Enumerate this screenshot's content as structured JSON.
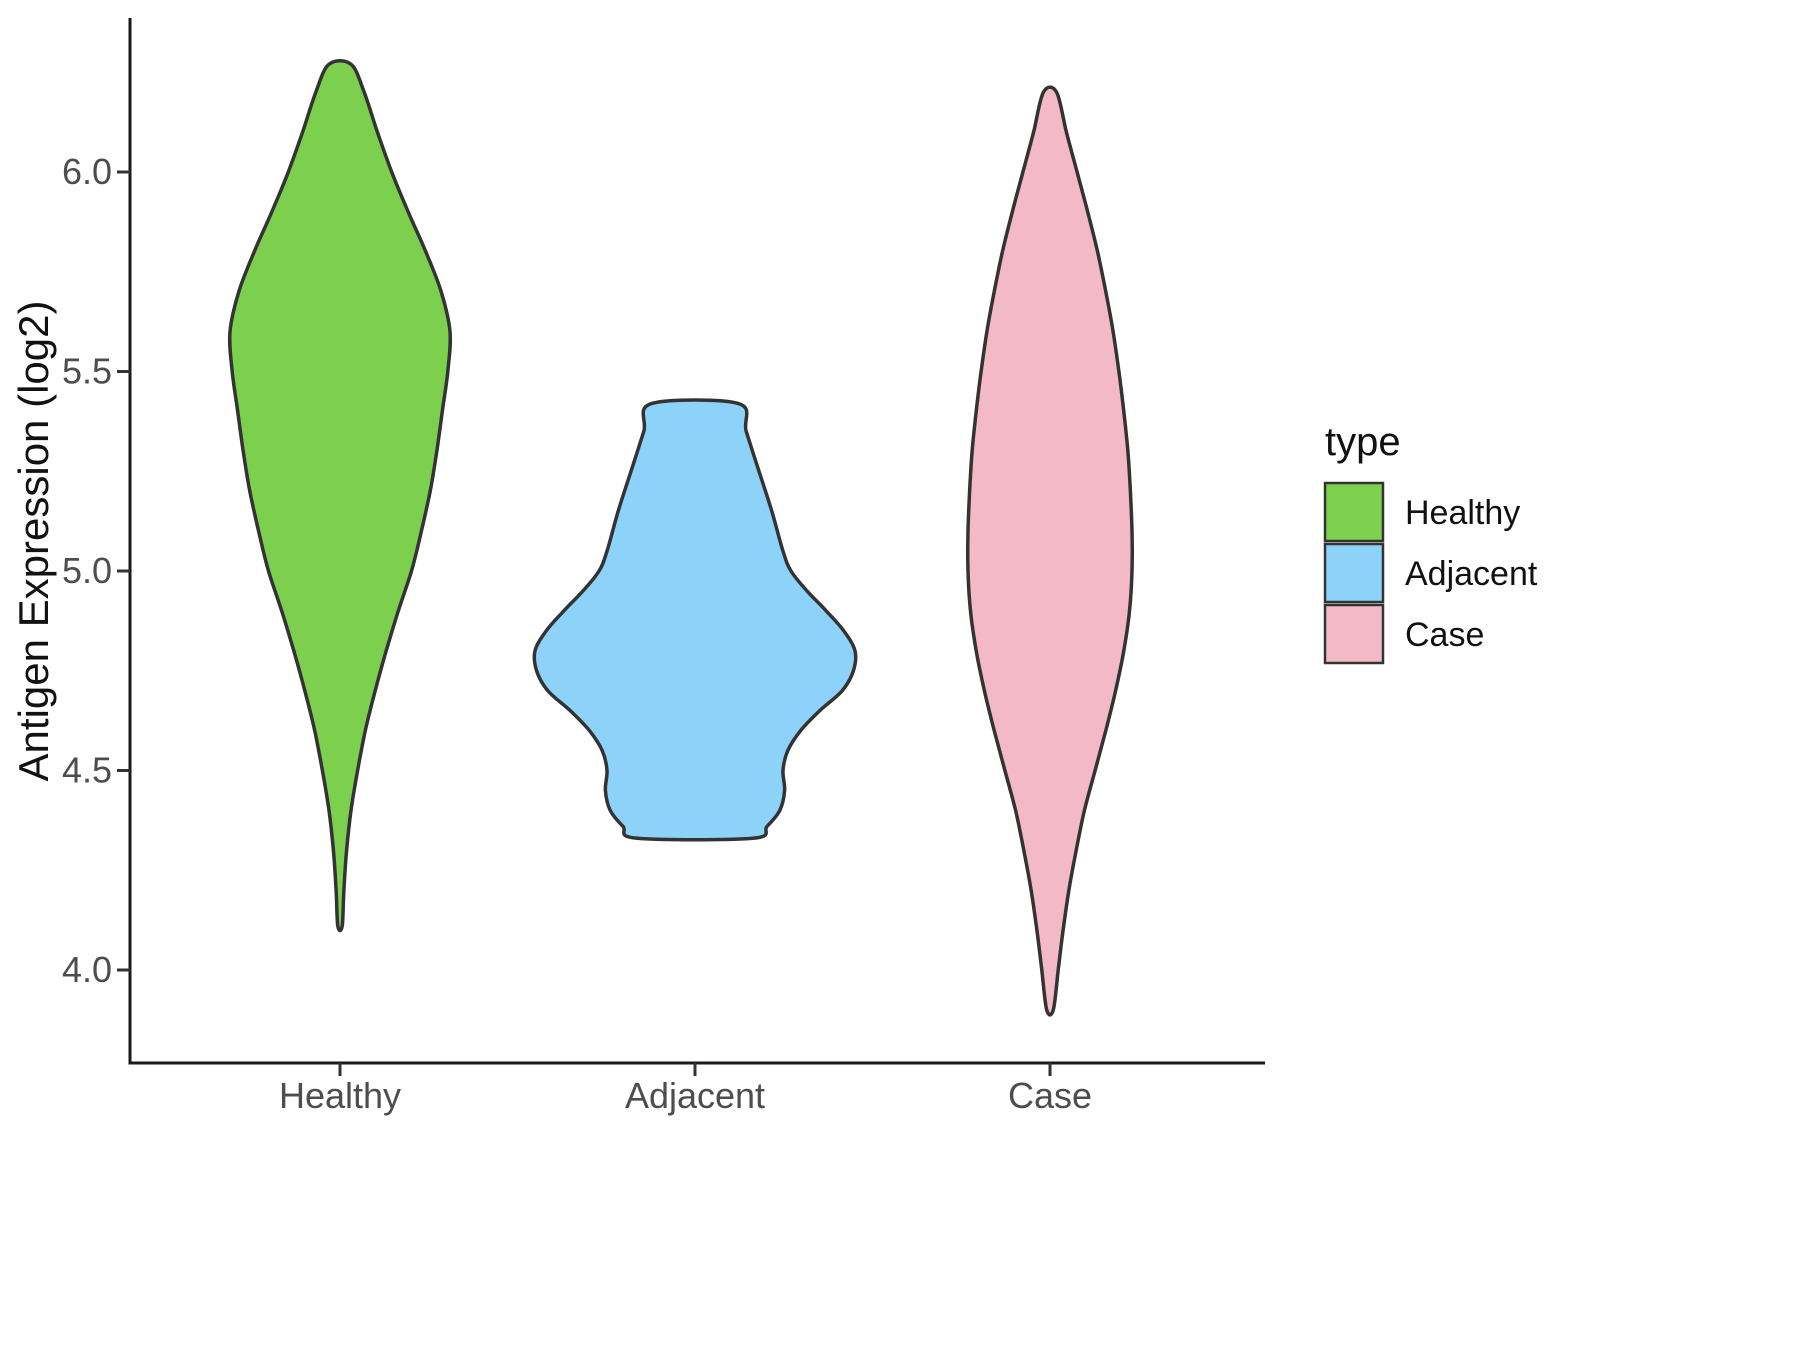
{
  "chart_data": {
    "type": "violin",
    "title": "",
    "xlabel": "",
    "ylabel": "Antigen Expression (log2)",
    "categories": [
      "Healthy",
      "Adjacent",
      "Case"
    ],
    "y_ticks": [
      4.0,
      4.5,
      5.0,
      5.5,
      6.0
    ],
    "ylim": [
      3.77,
      6.38
    ],
    "grid": false,
    "outline_color": "#333333",
    "legend": {
      "title": "type",
      "position": "right",
      "entries": [
        "Healthy",
        "Adjacent",
        "Case"
      ]
    },
    "series": [
      {
        "name": "Healthy",
        "color": "#7CD04E",
        "min": 4.11,
        "max": 6.27,
        "peak_at": 5.6,
        "profile": [
          [
            6.27,
            0.1
          ],
          [
            6.2,
            0.22
          ],
          [
            6.1,
            0.34
          ],
          [
            6.0,
            0.47
          ],
          [
            5.9,
            0.62
          ],
          [
            5.8,
            0.78
          ],
          [
            5.7,
            0.92
          ],
          [
            5.6,
            1.0
          ],
          [
            5.5,
            0.98
          ],
          [
            5.4,
            0.93
          ],
          [
            5.3,
            0.88
          ],
          [
            5.2,
            0.82
          ],
          [
            5.1,
            0.74
          ],
          [
            5.0,
            0.65
          ],
          [
            4.9,
            0.53
          ],
          [
            4.8,
            0.42
          ],
          [
            4.7,
            0.32
          ],
          [
            4.6,
            0.23
          ],
          [
            4.5,
            0.16
          ],
          [
            4.4,
            0.1
          ],
          [
            4.3,
            0.06
          ],
          [
            4.2,
            0.035
          ],
          [
            4.11,
            0.02
          ]
        ]
      },
      {
        "name": "Adjacent",
        "color": "#8DD2F8",
        "min": 4.33,
        "max": 5.42,
        "peak_at": 4.8,
        "profile": [
          [
            5.42,
            0.27
          ],
          [
            5.35,
            0.32
          ],
          [
            5.25,
            0.4
          ],
          [
            5.15,
            0.48
          ],
          [
            5.05,
            0.55
          ],
          [
            5.0,
            0.6
          ],
          [
            4.95,
            0.7
          ],
          [
            4.9,
            0.82
          ],
          [
            4.85,
            0.93
          ],
          [
            4.8,
            1.0
          ],
          [
            4.75,
            0.99
          ],
          [
            4.7,
            0.92
          ],
          [
            4.65,
            0.78
          ],
          [
            4.6,
            0.66
          ],
          [
            4.55,
            0.58
          ],
          [
            4.5,
            0.55
          ],
          [
            4.45,
            0.56
          ],
          [
            4.4,
            0.53
          ],
          [
            4.36,
            0.45
          ],
          [
            4.33,
            0.36
          ]
        ]
      },
      {
        "name": "Case",
        "color": "#F4B9C6",
        "min": 3.9,
        "max": 6.2,
        "peak_at": 5.05,
        "profile": [
          [
            6.2,
            0.08
          ],
          [
            6.1,
            0.2
          ],
          [
            6.0,
            0.33
          ],
          [
            5.9,
            0.46
          ],
          [
            5.8,
            0.58
          ],
          [
            5.7,
            0.68
          ],
          [
            5.6,
            0.77
          ],
          [
            5.5,
            0.84
          ],
          [
            5.4,
            0.9
          ],
          [
            5.3,
            0.95
          ],
          [
            5.2,
            0.98
          ],
          [
            5.1,
            1.0
          ],
          [
            5.0,
            1.0
          ],
          [
            4.9,
            0.97
          ],
          [
            4.8,
            0.9
          ],
          [
            4.7,
            0.8
          ],
          [
            4.6,
            0.68
          ],
          [
            4.5,
            0.55
          ],
          [
            4.4,
            0.42
          ],
          [
            4.3,
            0.32
          ],
          [
            4.2,
            0.23
          ],
          [
            4.1,
            0.16
          ],
          [
            4.0,
            0.1
          ],
          [
            3.9,
            0.04
          ]
        ]
      }
    ]
  }
}
